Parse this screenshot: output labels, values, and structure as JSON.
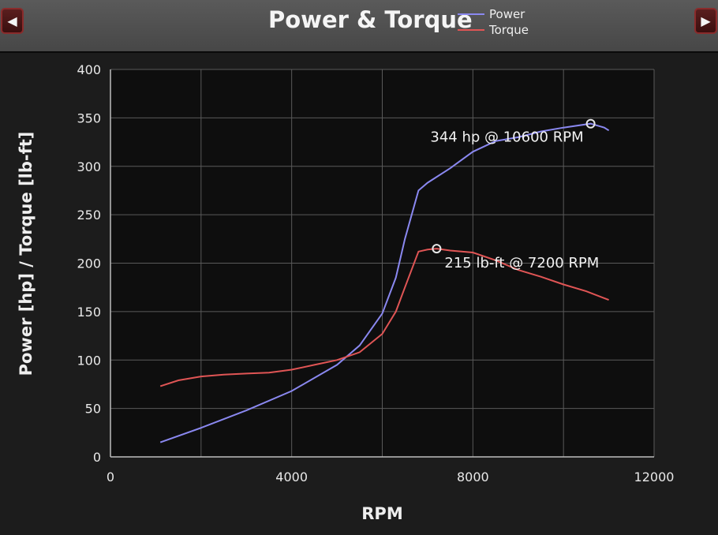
{
  "header": {
    "title": "Power & Torque",
    "prev_icon": "◀",
    "next_icon": "▶"
  },
  "chart_data": {
    "type": "line",
    "title": "Power & Torque",
    "xlabel": "RPM",
    "ylabel": "Power [hp] / Torque [lb-ft]",
    "xlim": [
      0,
      12000
    ],
    "ylim": [
      0,
      400
    ],
    "x_ticks": [
      0,
      4000,
      8000,
      12000
    ],
    "y_ticks": [
      0,
      50,
      100,
      150,
      200,
      250,
      300,
      350,
      400
    ],
    "x_grid": [
      0,
      2000,
      4000,
      6000,
      8000,
      10000,
      12000
    ],
    "grid": true,
    "legend_position": "top-right",
    "series": [
      {
        "name": "Power",
        "color": "#8a88f0",
        "points": [
          [
            1100,
            15
          ],
          [
            2000,
            30
          ],
          [
            3000,
            48
          ],
          [
            4000,
            68
          ],
          [
            5000,
            95
          ],
          [
            5500,
            115
          ],
          [
            6000,
            148
          ],
          [
            6300,
            185
          ],
          [
            6500,
            225
          ],
          [
            6800,
            275
          ],
          [
            7000,
            283
          ],
          [
            7500,
            298
          ],
          [
            8000,
            315
          ],
          [
            8500,
            326
          ],
          [
            9000,
            330
          ],
          [
            9500,
            336
          ],
          [
            10000,
            340
          ],
          [
            10600,
            344
          ],
          [
            10900,
            340
          ],
          [
            11000,
            337
          ]
        ]
      },
      {
        "name": "Torque",
        "color": "#e05555",
        "points": [
          [
            1100,
            73
          ],
          [
            1500,
            79
          ],
          [
            2000,
            83
          ],
          [
            2500,
            85
          ],
          [
            3000,
            86
          ],
          [
            3500,
            87
          ],
          [
            4000,
            90
          ],
          [
            4500,
            95
          ],
          [
            5000,
            100
          ],
          [
            5500,
            108
          ],
          [
            6000,
            127
          ],
          [
            6300,
            150
          ],
          [
            6500,
            175
          ],
          [
            6800,
            212
          ],
          [
            7000,
            214
          ],
          [
            7200,
            215
          ],
          [
            7500,
            213
          ],
          [
            8000,
            211
          ],
          [
            8500,
            203
          ],
          [
            9000,
            193
          ],
          [
            9500,
            186
          ],
          [
            10000,
            178
          ],
          [
            10500,
            171
          ],
          [
            11000,
            162
          ]
        ]
      }
    ],
    "annotations": [
      {
        "text": "344 hp @ 10600 RPM",
        "x": 10600,
        "y": 344,
        "color": "#8a88f0"
      },
      {
        "text": "215 lb-ft @ 7200 RPM",
        "x": 7200,
        "y": 215,
        "color": "#e05555"
      }
    ]
  }
}
